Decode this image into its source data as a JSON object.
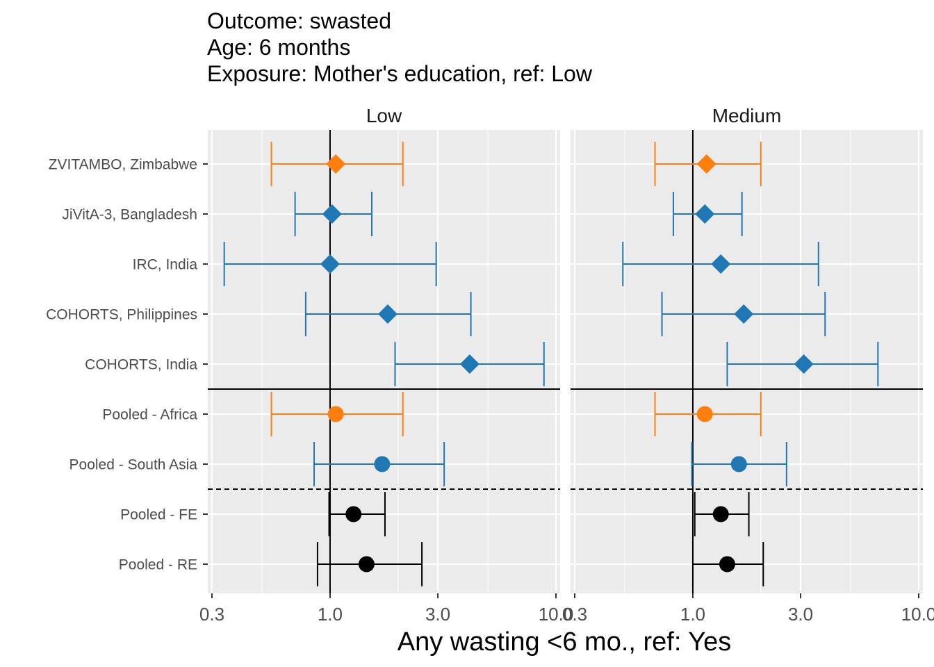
{
  "title_lines": [
    "Outcome: swasted",
    "Age: 6 months",
    "Exposure: Mother's education, ref: Low"
  ],
  "chart_data": {
    "type": "forest",
    "x_scale": "log",
    "xlim": [
      0.3,
      10.0
    ],
    "x_ticks": [
      0.3,
      1.0,
      3.0,
      10.0
    ],
    "x_tick_labels": [
      "0.3",
      "1.0",
      "3.0",
      "10.0"
    ],
    "xlabel": "Any wasting  <6 mo., ref: Yes",
    "reference_line": 1.0,
    "colors": {
      "Africa": "#ff7f0e",
      "South Asia": "#1f77b4",
      "Overall": "#000000"
    },
    "rows": [
      {
        "label": "ZVITAMBO, Zimbabwe",
        "region": "Africa",
        "shape": "diamond"
      },
      {
        "label": "JiVitA-3, Bangladesh",
        "region": "South Asia",
        "shape": "diamond"
      },
      {
        "label": "IRC, India",
        "region": "South Asia",
        "shape": "diamond"
      },
      {
        "label": "COHORTS, Philippines",
        "region": "South Asia",
        "shape": "diamond"
      },
      {
        "label": "COHORTS, India",
        "region": "South Asia",
        "shape": "diamond"
      },
      {
        "label": "Pooled - Africa",
        "region": "Africa",
        "shape": "circle"
      },
      {
        "label": "Pooled - South Asia",
        "region": "South Asia",
        "shape": "circle"
      },
      {
        "label": "Pooled - FE",
        "region": "Overall",
        "shape": "circle"
      },
      {
        "label": "Pooled - RE",
        "region": "Overall",
        "shape": "circle"
      }
    ],
    "panels": [
      {
        "name": "Low",
        "estimates": [
          {
            "est": 1.06,
            "lo": 0.55,
            "hi": 2.1
          },
          {
            "est": 1.02,
            "lo": 0.7,
            "hi": 1.53
          },
          {
            "est": 1.0,
            "lo": 0.34,
            "hi": 2.95
          },
          {
            "est": 1.8,
            "lo": 0.78,
            "hi": 4.2
          },
          {
            "est": 4.15,
            "lo": 1.94,
            "hi": 8.85
          },
          {
            "est": 1.06,
            "lo": 0.55,
            "hi": 2.1
          },
          {
            "est": 1.7,
            "lo": 0.85,
            "hi": 3.2
          },
          {
            "est": 1.27,
            "lo": 0.99,
            "hi": 1.75
          },
          {
            "est": 1.45,
            "lo": 0.88,
            "hi": 2.55
          }
        ]
      },
      {
        "name": "Medium",
        "estimates": [
          {
            "est": 1.15,
            "lo": 0.68,
            "hi": 2.0
          },
          {
            "est": 1.13,
            "lo": 0.82,
            "hi": 1.65
          },
          {
            "est": 1.33,
            "lo": 0.49,
            "hi": 3.6
          },
          {
            "est": 1.68,
            "lo": 0.73,
            "hi": 3.85
          },
          {
            "est": 3.1,
            "lo": 1.42,
            "hi": 6.6
          },
          {
            "est": 1.13,
            "lo": 0.68,
            "hi": 2.0
          },
          {
            "est": 1.6,
            "lo": 0.99,
            "hi": 2.6
          },
          {
            "est": 1.33,
            "lo": 1.02,
            "hi": 1.77
          },
          {
            "est": 1.42,
            "lo": 1.0,
            "hi": 2.05
          }
        ]
      }
    ]
  }
}
